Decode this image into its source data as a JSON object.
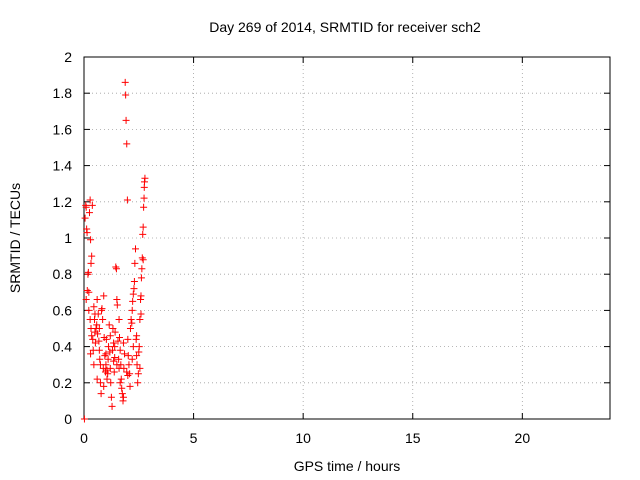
{
  "chart_data": {
    "type": "scatter",
    "title": "Day 269 of 2014, SRMTID for receiver sch2",
    "xlabel": "GPS time / hours",
    "ylabel": "SRMTID / TECUs",
    "xlim": [
      0,
      24
    ],
    "ylim": [
      0,
      2
    ],
    "x_ticks": [
      0,
      5,
      10,
      15,
      20
    ],
    "x_tick_labels": [
      "0",
      "5",
      "10",
      "15",
      "20"
    ],
    "y_ticks": [
      0,
      0.2,
      0.4,
      0.6,
      0.8,
      1,
      1.2,
      1.4,
      1.6,
      1.8,
      2
    ],
    "y_tick_labels": [
      "0",
      "0.2",
      "0.4",
      "0.6",
      "0.8",
      "1",
      "1.2",
      "1.4",
      "1.6",
      "1.8",
      "2"
    ],
    "grid": true,
    "marker": "+",
    "color": "#ff0000",
    "series": [
      {
        "name": "SRMTID",
        "points": [
          [
            0.02,
            0.0
          ],
          [
            0.05,
            1.11
          ],
          [
            0.08,
            1.18
          ],
          [
            0.1,
            1.17
          ],
          [
            0.12,
            1.05
          ],
          [
            0.14,
            1.03
          ],
          [
            0.1,
            0.66
          ],
          [
            0.15,
            0.71
          ],
          [
            0.18,
            0.8
          ],
          [
            0.2,
            0.81
          ],
          [
            0.22,
            0.7
          ],
          [
            0.25,
            1.14
          ],
          [
            0.28,
            1.21
          ],
          [
            0.3,
            0.99
          ],
          [
            0.32,
            0.86
          ],
          [
            0.35,
            0.9
          ],
          [
            0.38,
            1.18
          ],
          [
            0.22,
            0.6
          ],
          [
            0.28,
            0.55
          ],
          [
            0.32,
            0.5
          ],
          [
            0.35,
            0.46
          ],
          [
            0.4,
            0.44
          ],
          [
            0.42,
            0.38
          ],
          [
            0.45,
            0.62
          ],
          [
            0.48,
            0.55
          ],
          [
            0.5,
            0.48
          ],
          [
            0.52,
            0.42
          ],
          [
            0.55,
            0.5
          ],
          [
            0.58,
            0.52
          ],
          [
            0.6,
            0.66
          ],
          [
            0.62,
            0.47
          ],
          [
            0.65,
            0.58
          ],
          [
            0.68,
            0.43
          ],
          [
            0.7,
            0.38
          ],
          [
            0.72,
            0.33
          ],
          [
            0.75,
            0.2
          ],
          [
            0.78,
            0.14
          ],
          [
            0.8,
            0.6
          ],
          [
            0.82,
            0.61
          ],
          [
            0.85,
            0.55
          ],
          [
            0.88,
            0.28
          ],
          [
            0.9,
            0.68
          ],
          [
            0.92,
            0.45
          ],
          [
            0.95,
            0.35
          ],
          [
            0.98,
            0.26
          ],
          [
            1.0,
            0.3
          ],
          [
            1.02,
            0.44
          ],
          [
            1.05,
            0.27
          ],
          [
            1.08,
            0.25
          ],
          [
            1.1,
            0.33
          ],
          [
            1.12,
            0.4
          ],
          [
            1.15,
            0.52
          ],
          [
            1.18,
            0.37
          ],
          [
            1.2,
            0.28
          ],
          [
            1.22,
            0.2
          ],
          [
            1.25,
            0.12
          ],
          [
            1.28,
            0.07
          ],
          [
            1.3,
            0.38
          ],
          [
            1.32,
            0.5
          ],
          [
            1.35,
            0.32
          ],
          [
            1.38,
            0.26
          ],
          [
            1.4,
            0.4
          ],
          [
            1.42,
            0.48
          ],
          [
            1.45,
            0.84
          ],
          [
            1.48,
            0.83
          ],
          [
            1.5,
            0.66
          ],
          [
            1.52,
            0.63
          ],
          [
            1.55,
            0.43
          ],
          [
            1.58,
            0.33
          ],
          [
            1.6,
            0.28
          ],
          [
            1.62,
            0.45
          ],
          [
            1.65,
            0.38
          ],
          [
            1.68,
            0.3
          ],
          [
            1.7,
            0.22
          ],
          [
            1.72,
            0.17
          ],
          [
            1.75,
            0.14
          ],
          [
            1.78,
            0.1
          ],
          [
            1.8,
            0.12
          ],
          [
            1.82,
            0.28
          ],
          [
            1.85,
            0.36
          ],
          [
            1.88,
            1.86
          ],
          [
            1.9,
            1.79
          ],
          [
            1.92,
            1.65
          ],
          [
            1.95,
            1.52
          ],
          [
            1.98,
            1.21
          ],
          [
            2.0,
            0.44
          ],
          [
            2.02,
            0.35
          ],
          [
            2.05,
            0.3
          ],
          [
            2.08,
            0.25
          ],
          [
            2.1,
            0.18
          ],
          [
            2.12,
            0.5
          ],
          [
            2.15,
            0.55
          ],
          [
            2.18,
            0.53
          ],
          [
            2.2,
            0.6
          ],
          [
            2.22,
            0.65
          ],
          [
            2.25,
            0.69
          ],
          [
            2.28,
            0.72
          ],
          [
            2.3,
            0.76
          ],
          [
            2.32,
            0.86
          ],
          [
            2.35,
            0.94
          ],
          [
            2.38,
            0.44
          ],
          [
            2.4,
            0.35
          ],
          [
            2.42,
            0.3
          ],
          [
            2.45,
            0.2
          ],
          [
            2.48,
            0.25
          ],
          [
            2.5,
            0.37
          ],
          [
            2.52,
            0.4
          ],
          [
            2.55,
            0.55
          ],
          [
            2.58,
            0.66
          ],
          [
            2.6,
            0.68
          ],
          [
            2.62,
            0.78
          ],
          [
            2.64,
            0.83
          ],
          [
            2.66,
            0.89
          ],
          [
            2.68,
            1.02
          ],
          [
            2.7,
            1.06
          ],
          [
            2.72,
            1.17
          ],
          [
            2.74,
            1.22
          ],
          [
            2.75,
            1.28
          ],
          [
            2.76,
            1.31
          ],
          [
            2.78,
            1.33
          ],
          [
            0.3,
            0.36
          ],
          [
            0.45,
            0.3
          ],
          [
            0.6,
            0.22
          ],
          [
            0.75,
            0.3
          ],
          [
            0.9,
            0.18
          ],
          [
            1.05,
            0.22
          ],
          [
            1.35,
            0.42
          ],
          [
            1.5,
            0.3
          ],
          [
            1.65,
            0.2
          ],
          [
            1.95,
            0.26
          ],
          [
            2.25,
            0.4
          ],
          [
            2.55,
            0.28
          ],
          [
            0.5,
            0.58
          ],
          [
            0.7,
            0.5
          ],
          [
            1.0,
            0.36
          ],
          [
            1.2,
            0.46
          ],
          [
            1.4,
            0.34
          ],
          [
            1.6,
            0.55
          ],
          [
            1.8,
            0.42
          ],
          [
            2.0,
            0.24
          ],
          [
            2.2,
            0.33
          ],
          [
            2.4,
            0.46
          ],
          [
            2.6,
            0.58
          ],
          [
            2.7,
            0.88
          ]
        ]
      }
    ]
  }
}
